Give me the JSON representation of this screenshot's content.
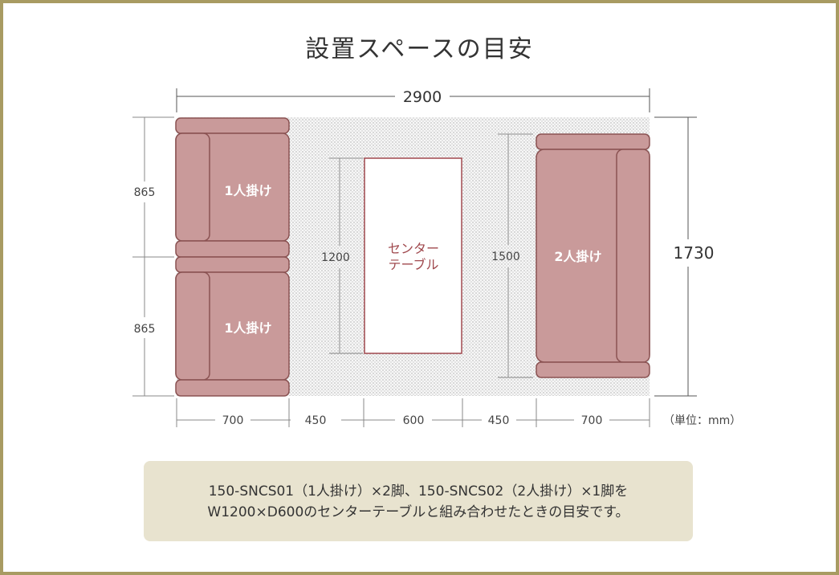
{
  "title": "設置スペースの目安",
  "dims": {
    "total_width": "2900",
    "total_depth": "1730",
    "seat_depth_top": "865",
    "seat_depth_bottom": "865",
    "table_depth": "1200",
    "sofa2_depth": "1500",
    "w_sofa1": "700",
    "gap_left": "450",
    "table_width": "600",
    "gap_right": "450",
    "w_sofa2": "700",
    "unit": "（単位：mm）"
  },
  "labels": {
    "sofa1_top": "1人掛け",
    "sofa1_bottom": "1人掛け",
    "sofa2": "2人掛け",
    "table_line1": "センター",
    "table_line2": "テーブル"
  },
  "note": {
    "line1": "150-SNCS01（1人掛け）×2脚、150-SNCS02（2人掛け）×1脚を",
    "line2": "W1200×D600のセンターテーブルと組み合わせたときの目安です。"
  },
  "colors": {
    "frame": "#a89b62",
    "sofa_fill": "#c99a9a",
    "sofa_stroke": "#8a5252",
    "table_stroke": "#a0494e",
    "note_bg": "#e8e3cf"
  }
}
